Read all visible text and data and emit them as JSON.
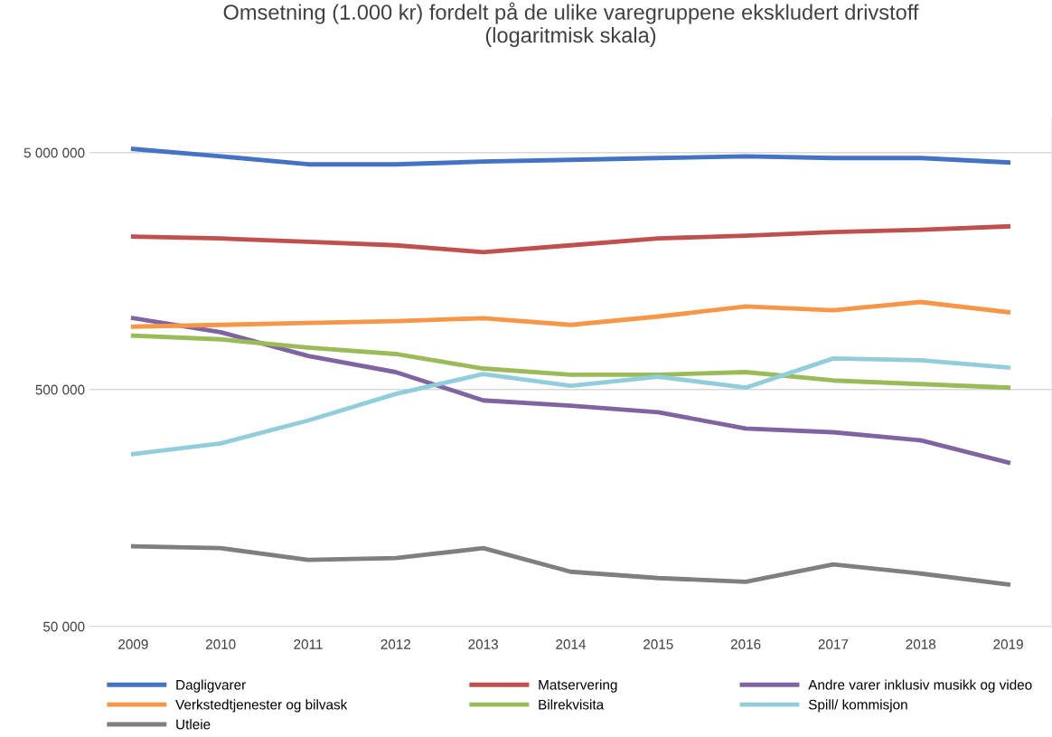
{
  "chart_data": {
    "type": "line",
    "title": "Omsetning (1.000 kr) fordelt på de ulike varegruppene ekskludert drivstoff\n(logaritmisk skala)",
    "categories": [
      "2009",
      "2010",
      "2011",
      "2012",
      "2013",
      "2014",
      "2015",
      "2016",
      "2017",
      "2018",
      "2019"
    ],
    "log": "y",
    "ylim": [
      50000,
      7000000
    ],
    "yticks": [
      {
        "value": 50000,
        "label": "50 000"
      },
      {
        "value": 500000,
        "label": "500 000"
      },
      {
        "value": 5000000,
        "label": "5 000 000"
      }
    ],
    "grid": "y",
    "legend": "bottom",
    "marker": "none",
    "line_style": "solid",
    "series": [
      {
        "name": "Dagligvarer",
        "color": "#4472c4",
        "values": [
          5180000,
          4820000,
          4460000,
          4460000,
          4580000,
          4660000,
          4740000,
          4820000,
          4740000,
          4740000,
          4540000
        ]
      },
      {
        "name": "Matservering",
        "color": "#c0504d",
        "values": [
          2210000,
          2170000,
          2100000,
          2030000,
          1900000,
          2030000,
          2170000,
          2230000,
          2310000,
          2360000,
          2440000
        ]
      },
      {
        "name": "Andre varer inklusiv musikk og video",
        "color": "#8064a2",
        "values": [
          1000000,
          873000,
          693000,
          592000,
          450000,
          427000,
          401000,
          342000,
          330000,
          305000,
          246000
        ]
      },
      {
        "name": "Verkstedtjenester og bilvask",
        "color": "#f79646",
        "values": [
          921000,
          937000,
          955000,
          972000,
          1000000,
          937000,
          1016000,
          1120000,
          1080000,
          1170000,
          1060000
        ]
      },
      {
        "name": "Bilrekvisita",
        "color": "#9bbb59",
        "values": [
          843000,
          814000,
          751000,
          706000,
          613000,
          577000,
          577000,
          592000,
          546000,
          527000,
          509000
        ]
      },
      {
        "name": "Spill/ kommisjon",
        "color": "#92cddc",
        "values": [
          267000,
          296000,
          370000,
          479000,
          581000,
          518000,
          566000,
          509000,
          676000,
          664000,
          619000
        ]
      },
      {
        "name": "Utleie",
        "color": "#7f7f7f",
        "values": [
          109000,
          107000,
          95500,
          97200,
          107000,
          85100,
          80000,
          77200,
          91400,
          83600,
          75200
        ]
      }
    ]
  }
}
